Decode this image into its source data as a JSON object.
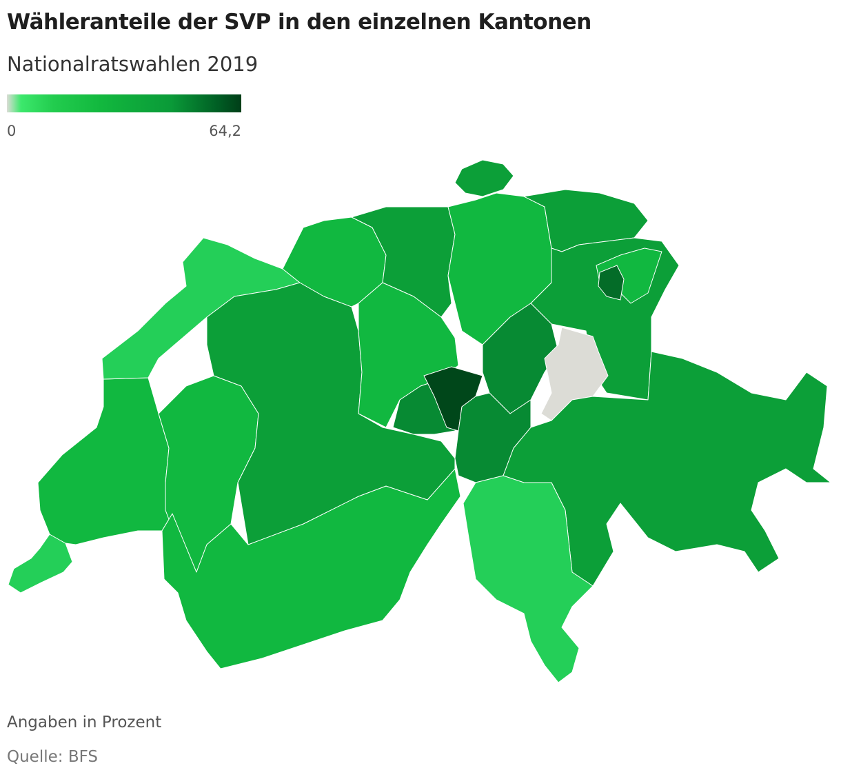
{
  "title": "Wähleranteile der SVP in den einzelnen Kantonen",
  "subtitle": "Nationalratswahlen 2019",
  "legend": {
    "min_label": "0",
    "max_label": "64,2",
    "color_min": "#3ce86c",
    "color_max": "#003e18",
    "color_no_data": "#dcdcd6"
  },
  "map_colors": {
    "light": "#24cf58",
    "medium_light": "#11b840",
    "medium": "#0c9f38",
    "medium_dark": "#078a33",
    "dark": "#046c28",
    "darkest": "#00471a",
    "no_data": "#dcdcd6"
  },
  "footer": {
    "unit_note": "Angaben in Prozent",
    "source": "Quelle: BFS"
  }
}
